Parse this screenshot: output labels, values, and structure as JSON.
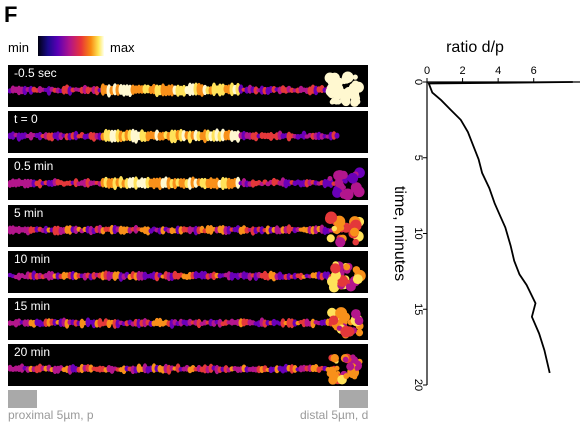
{
  "panel_letter": "F",
  "colorbar": {
    "min_label": "min",
    "max_label": "max"
  },
  "frames": [
    {
      "label": "-0.5 sec"
    },
    {
      "label": "t = 0"
    },
    {
      "label": "0.5 min"
    },
    {
      "label": "5 min"
    },
    {
      "label": "10 min"
    },
    {
      "label": "15 min"
    },
    {
      "label": "20 min"
    }
  ],
  "region_labels": {
    "proximal": "proximal 5µm, p",
    "distal": "distal 5µm, d"
  },
  "chart_data": {
    "type": "line",
    "title": "",
    "xlabel": "ratio d/p",
    "ylabel": "time, minutes",
    "xlim": [
      0,
      8
    ],
    "ylim": [
      0,
      20
    ],
    "x_ticks": [
      0,
      2,
      4,
      6
    ],
    "y_ticks": [
      0,
      5,
      10,
      15,
      20
    ],
    "series": [
      {
        "x": [
          8.2,
          0.1,
          0.3,
          0.8,
          1.3,
          1.9,
          2.3,
          2.6,
          2.9,
          3.1,
          3.5,
          3.8,
          4.1,
          4.4,
          4.7,
          4.9,
          5.2,
          5.6,
          6.1,
          5.9,
          6.3,
          6.6,
          6.9
        ],
        "y": [
          0,
          0.1,
          0.7,
          1.2,
          1.8,
          2.5,
          3.3,
          4.2,
          5.1,
          6.0,
          7.0,
          8.0,
          8.8,
          9.6,
          10.8,
          11.8,
          12.7,
          13.4,
          14.6,
          15.5,
          16.6,
          17.7,
          19.2
        ]
      }
    ]
  }
}
